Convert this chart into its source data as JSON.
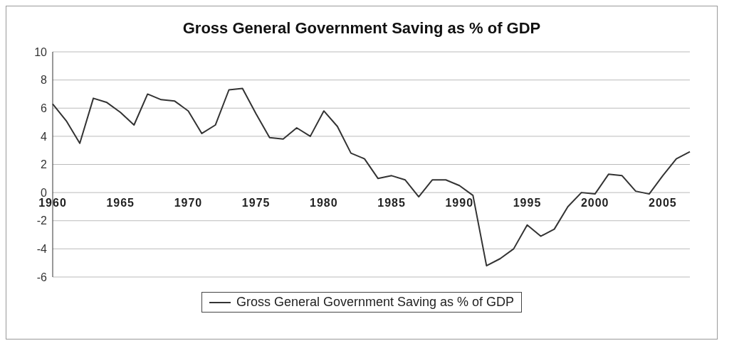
{
  "chart_data": {
    "type": "line",
    "title": "Gross General Government Saving as % of GDP",
    "categories": [
      "1960",
      null,
      null,
      null,
      null,
      "1965",
      null,
      null,
      null,
      null,
      "1970",
      null,
      null,
      null,
      null,
      "1975",
      null,
      null,
      null,
      null,
      "1980",
      null,
      null,
      null,
      null,
      "1985",
      null,
      null,
      null,
      null,
      "1990",
      null,
      null,
      null,
      null,
      "1995",
      null,
      null,
      null,
      null,
      "2000",
      null,
      null,
      null,
      null,
      "2005",
      null,
      null
    ],
    "series": [
      {
        "name": "Gross General Government Saving as % of GDP",
        "color": "#333333",
        "values": [
          6.3,
          5.1,
          3.5,
          6.7,
          6.4,
          5.7,
          4.8,
          7.0,
          6.6,
          6.5,
          5.8,
          4.2,
          4.8,
          7.3,
          7.4,
          5.6,
          3.9,
          3.8,
          4.6,
          4.0,
          5.8,
          4.7,
          2.8,
          2.4,
          1.0,
          1.2,
          0.9,
          -0.3,
          0.9,
          0.9,
          0.5,
          -0.2,
          -5.2,
          -4.7,
          -4.0,
          -2.3,
          -3.1,
          -2.6,
          -1.0,
          0.0,
          -0.1,
          1.3,
          1.2,
          0.1,
          -0.1,
          1.2,
          2.4,
          2.9
        ]
      }
    ],
    "ylim": [
      -6,
      10
    ],
    "yticks": [
      -6,
      -4,
      -2,
      0,
      2,
      4,
      6,
      8,
      10
    ],
    "grid": "y",
    "legend": "bottom",
    "marker": "none",
    "line_style": "solid"
  }
}
